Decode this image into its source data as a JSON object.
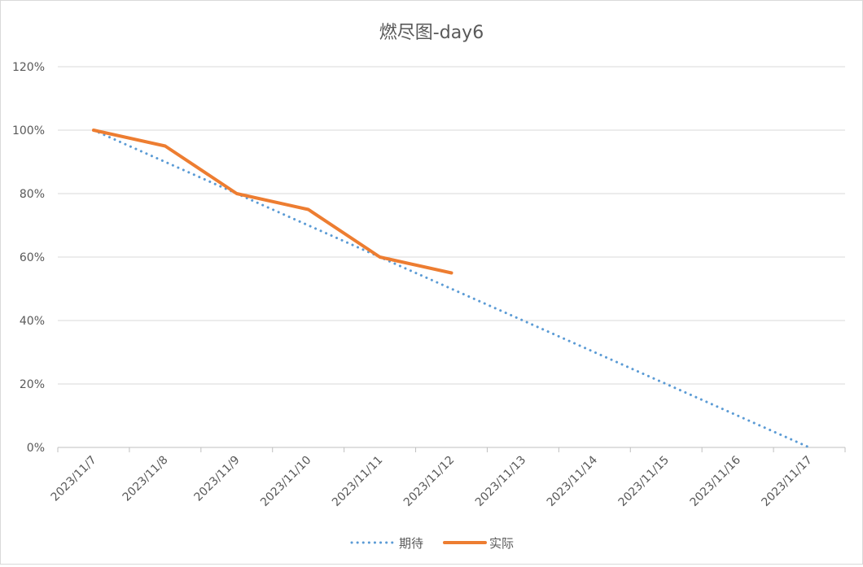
{
  "chart_data": {
    "type": "line",
    "title": "燃尽图-day6",
    "xlabel": "",
    "ylabel": "",
    "categories": [
      "2023/11/7",
      "2023/11/8",
      "2023/11/9",
      "2023/11/10",
      "2023/11/11",
      "2023/11/12",
      "2023/11/13",
      "2023/11/14",
      "2023/11/15",
      "2023/11/16",
      "2023/11/17"
    ],
    "ylim": [
      0,
      120
    ],
    "yticks": [
      "0%",
      "20%",
      "40%",
      "60%",
      "80%",
      "100%",
      "120%"
    ],
    "grid": true,
    "legend_position": "bottom",
    "series": [
      {
        "name": "期待",
        "style": "dotted",
        "color": "#5b9bd5",
        "values": [
          100,
          90,
          80,
          70,
          60,
          50,
          40,
          30,
          20,
          10,
          0
        ]
      },
      {
        "name": "实际",
        "style": "solid",
        "color": "#ed7d31",
        "values": [
          100,
          95,
          80,
          75,
          60,
          55,
          null,
          null,
          null,
          null,
          null
        ]
      }
    ]
  }
}
